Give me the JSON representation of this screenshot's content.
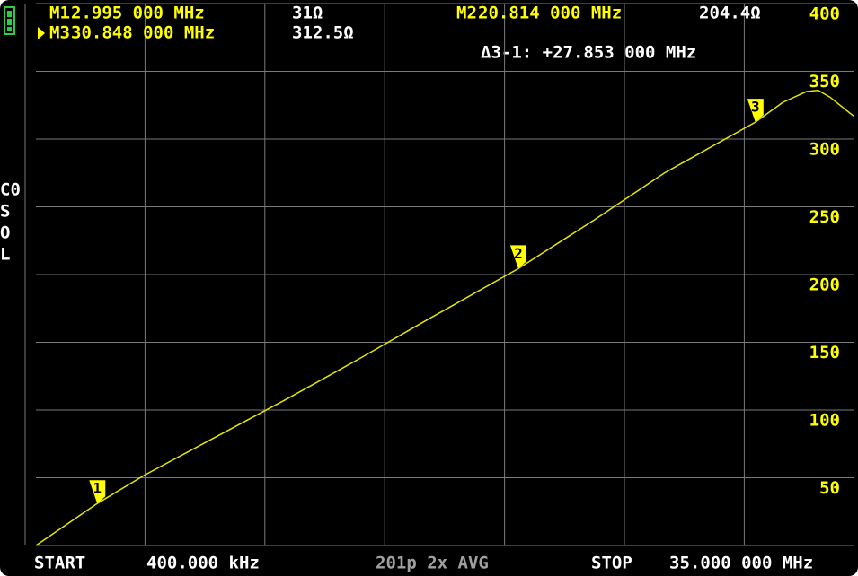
{
  "chart_data": {
    "type": "line",
    "series": [
      {
        "name": "resistance",
        "color": "#e6e600",
        "x": [
          0.4,
          2.995,
          5,
          8,
          11,
          14,
          17,
          20.814,
          24,
          27,
          30.848,
          32,
          33,
          33.5,
          34,
          35
        ],
        "values": [
          0,
          31,
          52,
          80,
          108,
          137,
          167,
          204.4,
          240,
          275,
          312.5,
          327,
          335,
          336,
          331,
          317
        ]
      }
    ],
    "xlim": [
      0.4,
      35
    ],
    "ylim": [
      0,
      400
    ],
    "yticks": [
      50,
      100,
      150,
      200,
      250,
      300,
      350,
      400
    ],
    "grid": true,
    "markers": [
      {
        "name": "M1",
        "label": "1",
        "x": 2.995,
        "x_label": "2.995 000 MHz",
        "value": 31,
        "value_label": "31Ω"
      },
      {
        "name": "M2",
        "label": "2",
        "x": 20.814,
        "x_label": "20.814 000 MHz",
        "value": 204.4,
        "value_label": "204.4Ω"
      },
      {
        "name": "M3",
        "label": "3",
        "x": 30.848,
        "x_label": "30.848 000 MHz",
        "value": 312.5,
        "value_label": "312.5Ω"
      }
    ],
    "delta": "Δ3-1: +27.853 000 MHz",
    "footer": {
      "start": "START",
      "start_value": "400.000 kHz",
      "info": "201p 2x AVG",
      "stop": "STOP",
      "stop_value": "35.000 000 MHz"
    },
    "cal_status": [
      "C0",
      "S",
      "O",
      "L"
    ]
  }
}
